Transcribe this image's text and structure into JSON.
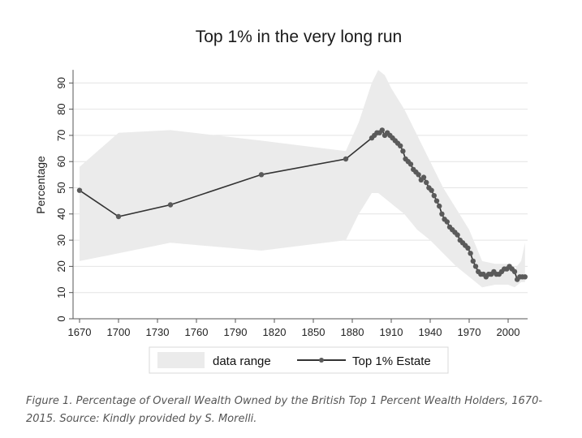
{
  "chart_data": {
    "type": "line",
    "title": "Top 1% in the very long run",
    "xlabel": "",
    "ylabel": "Percentage",
    "xlim": [
      1665,
      2015
    ],
    "ylim": [
      0,
      100
    ],
    "x_ticks": [
      1670,
      1700,
      1730,
      1760,
      1790,
      1820,
      1850,
      1880,
      1910,
      1940,
      1970,
      2000
    ],
    "y_ticks": [
      0,
      10,
      20,
      30,
      40,
      50,
      60,
      70,
      80,
      90
    ],
    "grid": true,
    "legend": {
      "position": "bottom",
      "entries": [
        "data range",
        "Top 1% Estate"
      ]
    },
    "colors": {
      "band": "#ebebeb",
      "line": "#333333",
      "marker": "#5a5a5a",
      "grid": "#e4e4e4"
    },
    "band": {
      "name": "data range",
      "x": [
        1670,
        1700,
        1740,
        1810,
        1875,
        1885,
        1895,
        1900,
        1905,
        1910,
        1920,
        1930,
        1940,
        1950,
        1960,
        1970,
        1975,
        1980,
        1990,
        2000,
        2005,
        2010,
        2013
      ],
      "upper": [
        58,
        71,
        72,
        68,
        64,
        75,
        90,
        95,
        93,
        88,
        80,
        70,
        60,
        50,
        42,
        34,
        28,
        22,
        21,
        21,
        19,
        22,
        29
      ],
      "lower": [
        22,
        25,
        29,
        26,
        30,
        40,
        48,
        48,
        46,
        44,
        40,
        34,
        30,
        25,
        20,
        16,
        14,
        12,
        13,
        13,
        12,
        14,
        14
      ]
    },
    "series": [
      {
        "name": "Top 1% Estate",
        "x": [
          1670,
          1700,
          1740,
          1810,
          1875,
          1895,
          1897,
          1899,
          1901,
          1903,
          1905,
          1907,
          1909,
          1911,
          1913,
          1915,
          1917,
          1919,
          1921,
          1923,
          1925,
          1927,
          1929,
          1931,
          1933,
          1935,
          1937,
          1939,
          1941,
          1943,
          1945,
          1947,
          1949,
          1951,
          1953,
          1955,
          1957,
          1959,
          1961,
          1963,
          1965,
          1967,
          1969,
          1971,
          1973,
          1975,
          1977,
          1979,
          1981,
          1983,
          1985,
          1987,
          1989,
          1991,
          1993,
          1995,
          1997,
          1999,
          2001,
          2003,
          2005,
          2007,
          2009,
          2011,
          2013
        ],
        "values": [
          49,
          39,
          43.5,
          55,
          61,
          69,
          70,
          71,
          71,
          72,
          70,
          71,
          70,
          69,
          68,
          67,
          66,
          64,
          61,
          60,
          59,
          57,
          56,
          55,
          53,
          54,
          52,
          50,
          49,
          47,
          45,
          43,
          40,
          38,
          37,
          35,
          34,
          33,
          32,
          30,
          29,
          28,
          27,
          25,
          22,
          20,
          18,
          17,
          17,
          16,
          17,
          17,
          18,
          17,
          17,
          18,
          19,
          19,
          20,
          19,
          18,
          15,
          16,
          16,
          16
        ]
      }
    ]
  },
  "caption": "Figure 1.  Percentage of Overall Wealth Owned by the British Top 1 Percent Wealth Holders, 1670-2015. Source: Kindly provided by S. Morelli."
}
